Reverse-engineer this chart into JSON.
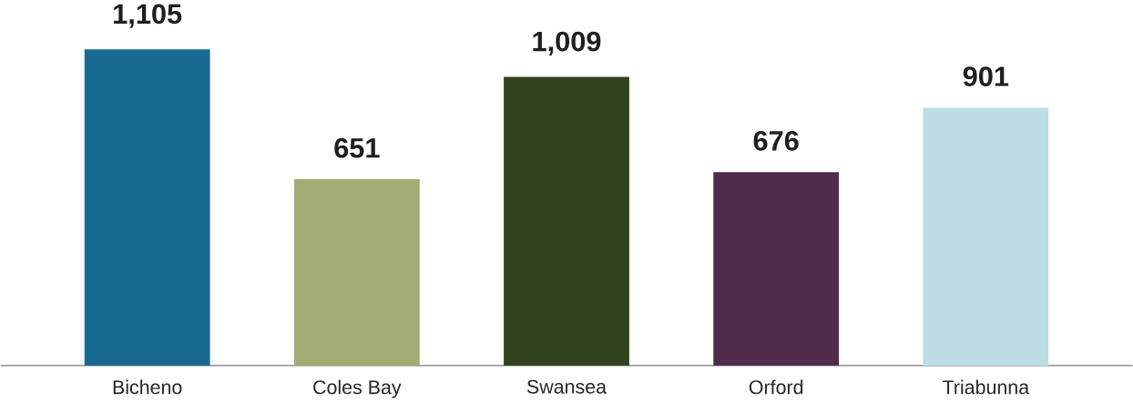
{
  "chart_data": {
    "type": "bar",
    "categories": [
      "Bicheno",
      "Coles Bay",
      "Swansea",
      "Orford",
      "Triabunna"
    ],
    "values": [
      1105,
      651,
      1009,
      676,
      901
    ],
    "value_labels": [
      "1,105",
      "651",
      "1,009",
      "676",
      "901"
    ],
    "colors": [
      "#186a91",
      "#a2ab74",
      "#31431d",
      "#512b4b",
      "#bcdde5"
    ],
    "tick_labels": "x"
  }
}
